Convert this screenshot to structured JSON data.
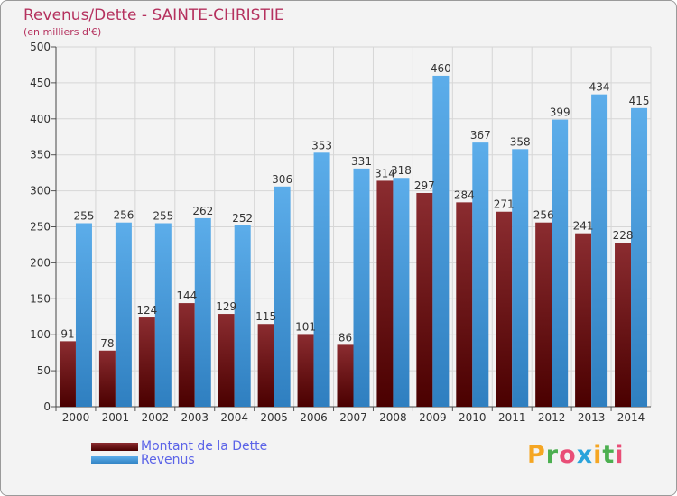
{
  "header": {
    "title": "Revenus/Dette - SAINTE-CHRISTIE",
    "subtitle": "(en milliers d'€)"
  },
  "chart_data": {
    "type": "bar",
    "title": "Revenus/Dette - SAINTE-CHRISTIE",
    "ylabel": "(en milliers d'€)",
    "xlabel": "",
    "categories": [
      "2000",
      "2001",
      "2002",
      "2003",
      "2004",
      "2005",
      "2006",
      "2007",
      "2008",
      "2009",
      "2010",
      "2011",
      "2012",
      "2013",
      "2014"
    ],
    "series": [
      {
        "name": "Montant de la Dette",
        "color": "#7a1f24",
        "values": [
          91,
          78,
          124,
          144,
          129,
          115,
          101,
          86,
          314,
          297,
          284,
          271,
          256,
          241,
          228
        ]
      },
      {
        "name": "Revenus",
        "color": "#4a9fe0",
        "values": [
          255,
          256,
          255,
          262,
          252,
          306,
          353,
          331,
          318,
          460,
          367,
          358,
          399,
          434,
          415
        ]
      }
    ],
    "ylim": [
      0,
      500
    ],
    "yticks": [
      0,
      50,
      100,
      150,
      200,
      250,
      300,
      350,
      400,
      450,
      500
    ],
    "grid": true,
    "legend": "bottom-left"
  },
  "legend": [
    {
      "label": "Montant de la Dette",
      "color": "#7a1f24"
    },
    {
      "label": "Revenus",
      "color": "#4a9fe0"
    }
  ],
  "logo": {
    "letters": [
      "P",
      "r",
      "o",
      "x",
      "i",
      "t",
      "i"
    ],
    "colors": [
      "#f5a623",
      "#4caf50",
      "#e94e77",
      "#2aa3db",
      "#f5a623",
      "#4caf50",
      "#e94e77"
    ]
  }
}
